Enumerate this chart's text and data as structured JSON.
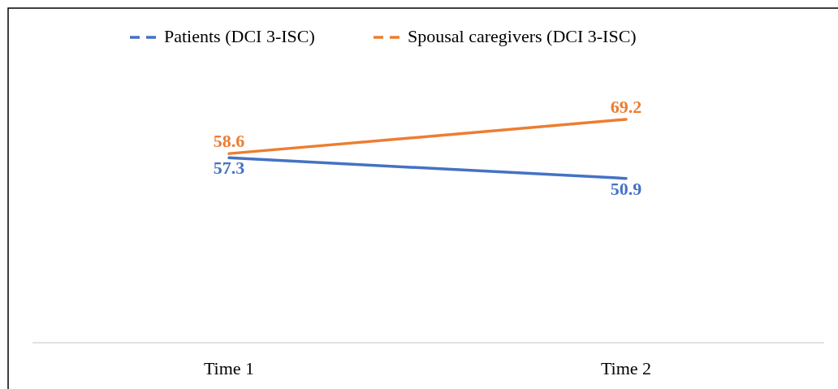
{
  "chart_data": {
    "type": "line",
    "categories": [
      "Time 1",
      "Time 2"
    ],
    "series": [
      {
        "name": "Patients (DCI 3-ISC)",
        "color": "#4472c4",
        "values": [
          57.3,
          50.9
        ]
      },
      {
        "name": "Spousal caregivers (DCI 3-ISC)",
        "color": "#ed7d31",
        "values": [
          58.6,
          69.2
        ]
      }
    ],
    "data_labels": true,
    "legend": "top",
    "marker": "none",
    "line_style": "solid"
  }
}
